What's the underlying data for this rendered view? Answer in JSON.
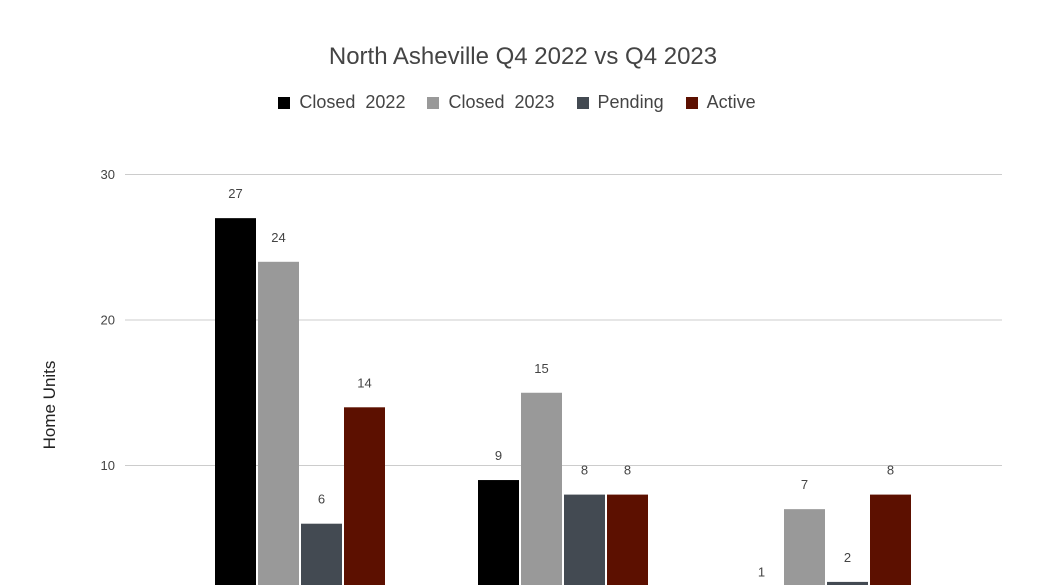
{
  "chart_data": {
    "type": "bar",
    "title": "North Asheville Q4 2022 vs Q4 2023",
    "xlabel": "",
    "ylabel": "Home Units",
    "ylim": [
      0,
      30
    ],
    "yticks": [
      "10",
      "20",
      "30"
    ],
    "grid": true,
    "legend_position": "top",
    "categories": [
      "",
      "",
      ""
    ],
    "series": [
      {
        "name": "Closed  2022",
        "color": "#000000",
        "values": [
          27,
          9,
          1
        ],
        "labels": [
          "27",
          "9",
          "1"
        ]
      },
      {
        "name": "Closed  2023",
        "color": "#999999",
        "values": [
          24,
          15,
          7
        ],
        "labels": [
          "24",
          "15",
          "7"
        ]
      },
      {
        "name": "Pending",
        "color": "#434a52",
        "values": [
          6,
          8,
          2
        ],
        "labels": [
          "6",
          "8",
          "2"
        ]
      },
      {
        "name": "Active",
        "color": "#5c1000",
        "values": [
          14,
          8,
          8
        ],
        "labels": [
          "14",
          "8",
          "8"
        ]
      }
    ]
  }
}
